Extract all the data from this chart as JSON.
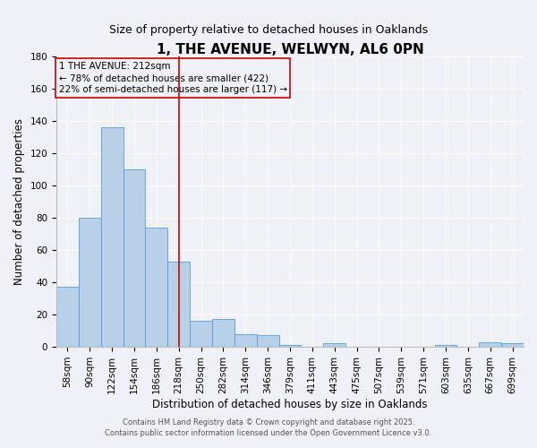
{
  "title": "1, THE AVENUE, WELWYN, AL6 0PN",
  "subtitle": "Size of property relative to detached houses in Oaklands",
  "xlabel": "Distribution of detached houses by size in Oaklands",
  "ylabel": "Number of detached properties",
  "categories": [
    "58sqm",
    "90sqm",
    "122sqm",
    "154sqm",
    "186sqm",
    "218sqm",
    "250sqm",
    "282sqm",
    "314sqm",
    "346sqm",
    "379sqm",
    "411sqm",
    "443sqm",
    "475sqm",
    "507sqm",
    "539sqm",
    "571sqm",
    "603sqm",
    "635sqm",
    "667sqm",
    "699sqm"
  ],
  "values": [
    37,
    80,
    136,
    110,
    74,
    53,
    16,
    17,
    8,
    7,
    1,
    0,
    2,
    0,
    0,
    0,
    0,
    1,
    0,
    3,
    2
  ],
  "bar_color": "#b8d0e8",
  "bar_edge_color": "#5b9bd5",
  "bar_width": 1.0,
  "ylim": [
    0,
    180
  ],
  "yticks": [
    0,
    20,
    40,
    60,
    80,
    100,
    120,
    140,
    160,
    180
  ],
  "vline_x": 5,
  "vline_color": "#cc0000",
  "ann_line1": "1 THE AVENUE: 212sqm",
  "ann_line2": "← 78% of detached houses are smaller (422)",
  "ann_line3": "22% of semi-detached houses are larger (117) →",
  "footer_line1": "Contains HM Land Registry data © Crown copyright and database right 2025.",
  "footer_line2": "Contains public sector information licensed under the Open Government Licence v3.0.",
  "background_color": "#eef2f8",
  "grid_color": "#ffffff",
  "title_fontsize": 11,
  "subtitle_fontsize": 9,
  "axis_label_fontsize": 8.5,
  "tick_fontsize": 7.5,
  "ann_fontsize": 7.5,
  "footer_fontsize": 6.0
}
